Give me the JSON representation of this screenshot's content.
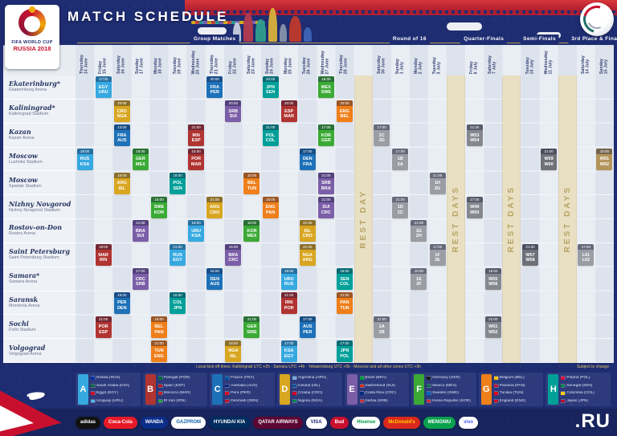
{
  "header": {
    "title": "MATCH SCHEDULE",
    "logo_line1": "FIFA WORLD CUP",
    "logo_line2": "RUSSIA 2018"
  },
  "schedule": {
    "stages": [
      {
        "label": "Group Matches",
        "from": 0,
        "to": 14
      },
      {
        "label": "Round of 16",
        "from": 16,
        "to": 19
      },
      {
        "label": "Quarter-Finals",
        "from": 21,
        "to": 22
      },
      {
        "label": "Semi-Finals",
        "from": 24,
        "to": 25
      },
      {
        "label": "3rd Place & Final",
        "from": 27,
        "to": 28
      }
    ],
    "columns": [
      {
        "day": "Thursday",
        "date": "14 June"
      },
      {
        "day": "Friday",
        "date": "15 June"
      },
      {
        "day": "Saturday",
        "date": "16 June"
      },
      {
        "day": "Sunday",
        "date": "17 June"
      },
      {
        "day": "Monday",
        "date": "18 June"
      },
      {
        "day": "Tuesday",
        "date": "19 June"
      },
      {
        "day": "Wednesday",
        "date": "20 June"
      },
      {
        "day": "Thursday",
        "date": "21 June"
      },
      {
        "day": "Friday",
        "date": "22 June"
      },
      {
        "day": "Saturday",
        "date": "23 June"
      },
      {
        "day": "Sunday",
        "date": "24 June"
      },
      {
        "day": "Monday",
        "date": "25 June"
      },
      {
        "day": "Tuesday",
        "date": "26 June"
      },
      {
        "day": "Wednesday",
        "date": "27 June"
      },
      {
        "day": "Thursday",
        "date": "28 June"
      },
      {
        "rest": "REST DAY"
      },
      {
        "day": "Saturday",
        "date": "30 June"
      },
      {
        "day": "Sunday",
        "date": "1 July"
      },
      {
        "day": "Monday",
        "date": "2 July"
      },
      {
        "day": "Tuesday",
        "date": "3 July"
      },
      {
        "rest": "REST DAYS"
      },
      {
        "day": "Friday",
        "date": "6 July"
      },
      {
        "day": "Saturday",
        "date": "7 July"
      },
      {
        "rest": "REST DAYS"
      },
      {
        "day": "Tuesday",
        "date": "10 July"
      },
      {
        "day": "Wednesday",
        "date": "11 July"
      },
      {
        "rest": "REST DAYS"
      },
      {
        "day": "Saturday",
        "date": "14 July"
      },
      {
        "day": "Sunday",
        "date": "15 July"
      }
    ]
  },
  "venues": [
    {
      "city": "Ekaterinburg*",
      "stadium": "Ekaterinburg Arena"
    },
    {
      "city": "Kaliningrad*",
      "stadium": "Kaliningrad Stadium"
    },
    {
      "city": "Kazan",
      "stadium": "Kazan Arena"
    },
    {
      "city": "Moscow",
      "stadium": "Luzhniki Stadium"
    },
    {
      "city": "Moscow",
      "stadium": "Spartak Stadium"
    },
    {
      "city": "Nizhny Novgorod",
      "stadium": "Nizhny Novgorod Stadium"
    },
    {
      "city": "Rostov-on-Don",
      "stadium": "Rostov Arena"
    },
    {
      "city": "Saint Petersburg",
      "stadium": "Saint Petersburg Stadium"
    },
    {
      "city": "Samara*",
      "stadium": "Samara Arena"
    },
    {
      "city": "Saransk",
      "stadium": "Mordovia Arena"
    },
    {
      "city": "Sochi",
      "stadium": "Fisht Stadium"
    },
    {
      "city": "Volgograd",
      "stadium": "Volgograd Arena"
    }
  ],
  "matches": [
    {
      "v": 3,
      "c": 0,
      "t": "18:00",
      "g": "A",
      "a": "RUS",
      "b": "KSA"
    },
    {
      "v": 0,
      "c": 1,
      "t": "17:00",
      "g": "A",
      "a": "EGY",
      "b": "URU"
    },
    {
      "v": 7,
      "c": 1,
      "t": "18:00",
      "g": "B",
      "a": "MAR",
      "b": "IRN"
    },
    {
      "v": 10,
      "c": 1,
      "t": "21:00",
      "g": "B",
      "a": "POR",
      "b": "ESP"
    },
    {
      "v": 2,
      "c": 2,
      "t": "13:00",
      "g": "C",
      "a": "FRA",
      "b": "AUS"
    },
    {
      "v": 4,
      "c": 2,
      "t": "16:00",
      "g": "D",
      "a": "ARG",
      "b": "ISL"
    },
    {
      "v": 9,
      "c": 2,
      "t": "19:00",
      "g": "C",
      "a": "PER",
      "b": "DEN"
    },
    {
      "v": 1,
      "c": 2,
      "t": "20:00",
      "g": "D",
      "a": "CRO",
      "b": "NGA"
    },
    {
      "v": 8,
      "c": 3,
      "t": "17:00",
      "g": "E",
      "a": "CRC",
      "b": "SRB"
    },
    {
      "v": 3,
      "c": 3,
      "t": "18:00",
      "g": "F",
      "a": "GER",
      "b": "MEX"
    },
    {
      "v": 6,
      "c": 3,
      "t": "21:00",
      "g": "E",
      "a": "BRA",
      "b": "SUI"
    },
    {
      "v": 5,
      "c": 4,
      "t": "15:00",
      "g": "F",
      "a": "SWE",
      "b": "KOR"
    },
    {
      "v": 10,
      "c": 4,
      "t": "18:00",
      "g": "G",
      "a": "BEL",
      "b": "PAN"
    },
    {
      "v": 11,
      "c": 4,
      "t": "21:00",
      "g": "G",
      "a": "TUN",
      "b": "ENG"
    },
    {
      "v": 9,
      "c": 5,
      "t": "15:00",
      "g": "H",
      "a": "COL",
      "b": "JPN"
    },
    {
      "v": 4,
      "c": 5,
      "t": "18:00",
      "g": "H",
      "a": "POL",
      "b": "SEN"
    },
    {
      "v": 7,
      "c": 5,
      "t": "21:00",
      "g": "A",
      "a": "RUS",
      "b": "EGY"
    },
    {
      "v": 3,
      "c": 6,
      "t": "15:00",
      "g": "B",
      "a": "POR",
      "b": "MAR"
    },
    {
      "v": 6,
      "c": 6,
      "t": "18:00",
      "g": "A",
      "a": "URU",
      "b": "KSA"
    },
    {
      "v": 2,
      "c": 6,
      "t": "21:00",
      "g": "B",
      "a": "IRN",
      "b": "ESP"
    },
    {
      "v": 8,
      "c": 7,
      "t": "16:00",
      "g": "C",
      "a": "DEN",
      "b": "AUS"
    },
    {
      "v": 0,
      "c": 7,
      "t": "20:00",
      "g": "C",
      "a": "FRA",
      "b": "PER"
    },
    {
      "v": 5,
      "c": 7,
      "t": "21:00",
      "g": "D",
      "a": "ARG",
      "b": "CRO"
    },
    {
      "v": 7,
      "c": 8,
      "t": "15:00",
      "g": "E",
      "a": "BRA",
      "b": "CRC"
    },
    {
      "v": 11,
      "c": 8,
      "t": "18:00",
      "g": "D",
      "a": "NGA",
      "b": "ISL"
    },
    {
      "v": 1,
      "c": 8,
      "t": "20:00",
      "g": "E",
      "a": "SRB",
      "b": "SUI"
    },
    {
      "v": 4,
      "c": 9,
      "t": "15:00",
      "g": "G",
      "a": "BEL",
      "b": "TUN"
    },
    {
      "v": 6,
      "c": 9,
      "t": "18:00",
      "g": "F",
      "a": "KOR",
      "b": "MEX"
    },
    {
      "v": 10,
      "c": 9,
      "t": "21:00",
      "g": "F",
      "a": "GER",
      "b": "SWE"
    },
    {
      "v": 5,
      "c": 10,
      "t": "15:00",
      "g": "G",
      "a": "ENG",
      "b": "PAN"
    },
    {
      "v": 0,
      "c": 10,
      "t": "20:00",
      "g": "H",
      "a": "JPN",
      "b": "SEN"
    },
    {
      "v": 2,
      "c": 10,
      "t": "21:00",
      "g": "H",
      "a": "POL",
      "b": "COL"
    },
    {
      "v": 8,
      "c": 11,
      "t": "18:00",
      "g": "A",
      "a": "URU",
      "b": "RUS"
    },
    {
      "v": 11,
      "c": 11,
      "t": "17:00",
      "g": "A",
      "a": "KSA",
      "b": "EGY"
    },
    {
      "v": 1,
      "c": 11,
      "t": "20:00",
      "g": "B",
      "a": "ESP",
      "b": "MAR"
    },
    {
      "v": 9,
      "c": 11,
      "t": "21:00",
      "g": "B",
      "a": "IRN",
      "b": "POR"
    },
    {
      "v": 3,
      "c": 12,
      "t": "17:00",
      "g": "C",
      "a": "DEN",
      "b": "FRA"
    },
    {
      "v": 10,
      "c": 12,
      "t": "17:00",
      "g": "C",
      "a": "AUS",
      "b": "PER"
    },
    {
      "v": 7,
      "c": 12,
      "t": "21:00",
      "g": "D",
      "a": "NGA",
      "b": "ARG"
    },
    {
      "v": 6,
      "c": 12,
      "t": "21:00",
      "g": "D",
      "a": "ISL",
      "b": "CRO"
    },
    {
      "v": 2,
      "c": 13,
      "t": "17:00",
      "g": "F",
      "a": "KOR",
      "b": "GER"
    },
    {
      "v": 0,
      "c": 13,
      "t": "19:00",
      "g": "F",
      "a": "MEX",
      "b": "SWE"
    },
    {
      "v": 4,
      "c": 13,
      "t": "21:00",
      "g": "E",
      "a": "SRB",
      "b": "BRA"
    },
    {
      "v": 5,
      "c": 13,
      "t": "21:00",
      "g": "E",
      "a": "SUI",
      "b": "CRC"
    },
    {
      "v": 11,
      "c": 14,
      "t": "17:00",
      "g": "H",
      "a": "JPN",
      "b": "POL"
    },
    {
      "v": 8,
      "c": 14,
      "t": "18:00",
      "g": "H",
      "a": "SEN",
      "b": "COL"
    },
    {
      "v": 9,
      "c": 14,
      "t": "21:00",
      "g": "G",
      "a": "PAN",
      "b": "TUN"
    },
    {
      "v": 1,
      "c": 14,
      "t": "20:00",
      "g": "G",
      "a": "ENG",
      "b": "BEL"
    },
    {
      "v": 2,
      "c": 16,
      "t": "17:00",
      "g": "R16",
      "a": "1C",
      "b": "2D"
    },
    {
      "v": 10,
      "c": 16,
      "t": "21:00",
      "g": "R16",
      "a": "1A",
      "b": "2B"
    },
    {
      "v": 3,
      "c": 17,
      "t": "17:00",
      "g": "R16",
      "a": "1B",
      "b": "2A"
    },
    {
      "v": 5,
      "c": 17,
      "t": "21:00",
      "g": "R16",
      "a": "1D",
      "b": "2C"
    },
    {
      "v": 8,
      "c": 18,
      "t": "18:00",
      "g": "R16",
      "a": "1E",
      "b": "2F"
    },
    {
      "v": 6,
      "c": 18,
      "t": "21:00",
      "g": "R16",
      "a": "1G",
      "b": "2H"
    },
    {
      "v": 7,
      "c": 19,
      "t": "17:00",
      "g": "R16",
      "a": "1F",
      "b": "2E"
    },
    {
      "v": 4,
      "c": 19,
      "t": "21:00",
      "g": "R16",
      "a": "1H",
      "b": "2G"
    },
    {
      "v": 5,
      "c": 21,
      "t": "17:00",
      "g": "QF",
      "a": "W49",
      "b": "W50"
    },
    {
      "v": 2,
      "c": 21,
      "t": "21:00",
      "g": "QF",
      "a": "W53",
      "b": "W54"
    },
    {
      "v": 8,
      "c": 22,
      "t": "18:00",
      "g": "QF",
      "a": "W55",
      "b": "W56"
    },
    {
      "v": 10,
      "c": 22,
      "t": "21:00",
      "g": "QF",
      "a": "W51",
      "b": "W52"
    },
    {
      "v": 7,
      "c": 24,
      "t": "21:00",
      "g": "SF",
      "a": "W57",
      "b": "W58"
    },
    {
      "v": 3,
      "c": 25,
      "t": "21:00",
      "g": "SF",
      "a": "W59",
      "b": "W60"
    },
    {
      "v": 7,
      "c": 27,
      "t": "17:00",
      "g": "TP",
      "a": "L61",
      "b": "L62"
    },
    {
      "v": 3,
      "c": 28,
      "t": "18:00",
      "g": "FIN",
      "a": "W61",
      "b": "W62"
    }
  ],
  "colors": {
    "groups": {
      "A": "#36a9e1",
      "B": "#b03431",
      "C": "#1d71b8",
      "D": "#d9a621",
      "E": "#7b5ea7",
      "F": "#3aaa35",
      "G": "#ef7f1a",
      "H": "#00a099",
      "R16": "#9a9da3",
      "QF": "#84878d",
      "SF": "#6e7178",
      "TP": "#9a9da3",
      "FIN": "#b3955c"
    },
    "flags": {
      "RUS": "#0033a0",
      "KSA": "#006c35",
      "EGY": "#ce1126",
      "URU": "#55b5e5",
      "POR": "#046a38",
      "ESP": "#c60b1e",
      "MAR": "#c1272d",
      "IRN": "#239f40",
      "FRA": "#0055a4",
      "AUS": "#00247d",
      "PER": "#d91023",
      "DEN": "#c8102e",
      "ARG": "#75aadb",
      "ISL": "#02529c",
      "CRO": "#d80027",
      "NGA": "#008751",
      "BRA": "#009c3b",
      "SUI": "#da291c",
      "CRC": "#002b7f",
      "SRB": "#c6363c",
      "GER": "#1a1a1a",
      "MEX": "#006847",
      "SWE": "#0065bd",
      "KOR": "#cd2e3a",
      "BEL": "#f6c500",
      "PAN": "#d21034",
      "TUN": "#e70013",
      "ENG": "#cf081f",
      "POL": "#dc143c",
      "SEN": "#00853f",
      "COL": "#fcd116",
      "JPN": "#bc002d"
    },
    "accent_red": "#c8102e",
    "navy": "#1e2c72"
  },
  "legend": {
    "groups": [
      {
        "letter": "A",
        "teams": [
          {
            "name": "Russia",
            "code": "RUS"
          },
          {
            "name": "Saudi Arabia",
            "code": "KSA"
          },
          {
            "name": "Egypt",
            "code": "EGY"
          },
          {
            "name": "Uruguay",
            "code": "URU"
          }
        ]
      },
      {
        "letter": "B",
        "teams": [
          {
            "name": "Portugal",
            "code": "POR"
          },
          {
            "name": "Spain",
            "code": "ESP"
          },
          {
            "name": "Morocco",
            "code": "MAR"
          },
          {
            "name": "IR Iran",
            "code": "IRN"
          }
        ]
      },
      {
        "letter": "C",
        "teams": [
          {
            "name": "France",
            "code": "FRA"
          },
          {
            "name": "Australia",
            "code": "AUS"
          },
          {
            "name": "Peru",
            "code": "PER"
          },
          {
            "name": "Denmark",
            "code": "DEN"
          }
        ]
      },
      {
        "letter": "D",
        "teams": [
          {
            "name": "Argentina",
            "code": "ARG"
          },
          {
            "name": "Iceland",
            "code": "ISL"
          },
          {
            "name": "Croatia",
            "code": "CRO"
          },
          {
            "name": "Nigeria",
            "code": "NGA"
          }
        ]
      },
      {
        "letter": "E",
        "teams": [
          {
            "name": "Brazil",
            "code": "BRA"
          },
          {
            "name": "Switzerland",
            "code": "SUI"
          },
          {
            "name": "Costa Rica",
            "code": "CRC"
          },
          {
            "name": "Serbia",
            "code": "SRB"
          }
        ]
      },
      {
        "letter": "F",
        "teams": [
          {
            "name": "Germany",
            "code": "GER"
          },
          {
            "name": "Mexico",
            "code": "MEX"
          },
          {
            "name": "Sweden",
            "code": "SWE"
          },
          {
            "name": "Korea Republic",
            "code": "KOR"
          }
        ]
      },
      {
        "letter": "G",
        "teams": [
          {
            "name": "Belgium",
            "code": "BEL"
          },
          {
            "name": "Panama",
            "code": "PAN"
          },
          {
            "name": "Tunisia",
            "code": "TUN"
          },
          {
            "name": "England",
            "code": "ENG"
          }
        ]
      },
      {
        "letter": "H",
        "teams": [
          {
            "name": "Poland",
            "code": "POL"
          },
          {
            "name": "Senegal",
            "code": "SEN"
          },
          {
            "name": "Colombia",
            "code": "COL"
          },
          {
            "name": "Japan",
            "code": "JPN"
          }
        ]
      }
    ]
  },
  "footnote": {
    "text": "Local kick-off times: Kaliningrad UTC +2h · Samara UTC +4h · Yekaterinburg UTC +5h · Moscow and all other zones UTC +3h",
    "right": "Subject to change"
  },
  "sponsors": [
    {
      "label": "adidas",
      "bg": "#111111",
      "fg": "#ffffff"
    },
    {
      "label": "Coca-Cola",
      "bg": "#e61a27",
      "fg": "#ffffff"
    },
    {
      "label": "WANDA",
      "bg": "#0b2e8a",
      "fg": "#ffffff"
    },
    {
      "label": "GAZPROM",
      "bg": "#ffffff",
      "fg": "#1062a8"
    },
    {
      "label": "HYUNDAI KIA",
      "bg": "#002c5f",
      "fg": "#ffffff"
    },
    {
      "label": "QATAR AIRWAYS",
      "bg": "#5c0632",
      "fg": "#ffffff"
    },
    {
      "label": "VISA",
      "bg": "#ffffff",
      "fg": "#1a1f71"
    },
    {
      "label": "Bud",
      "bg": "#c8102e",
      "fg": "#ffffff"
    },
    {
      "label": "Hisense",
      "bg": "#ffffff",
      "fg": "#009a44"
    },
    {
      "label": "McDonald's",
      "bg": "#da291c",
      "fg": "#ffcc00"
    },
    {
      "label": "MENGNIU",
      "bg": "#0aa14e",
      "fg": "#ffffff"
    },
    {
      "label": "vivo",
      "bg": "#ffffff",
      "fg": "#4157ff"
    }
  ],
  "footer": {
    "ru_label": ".RU"
  }
}
